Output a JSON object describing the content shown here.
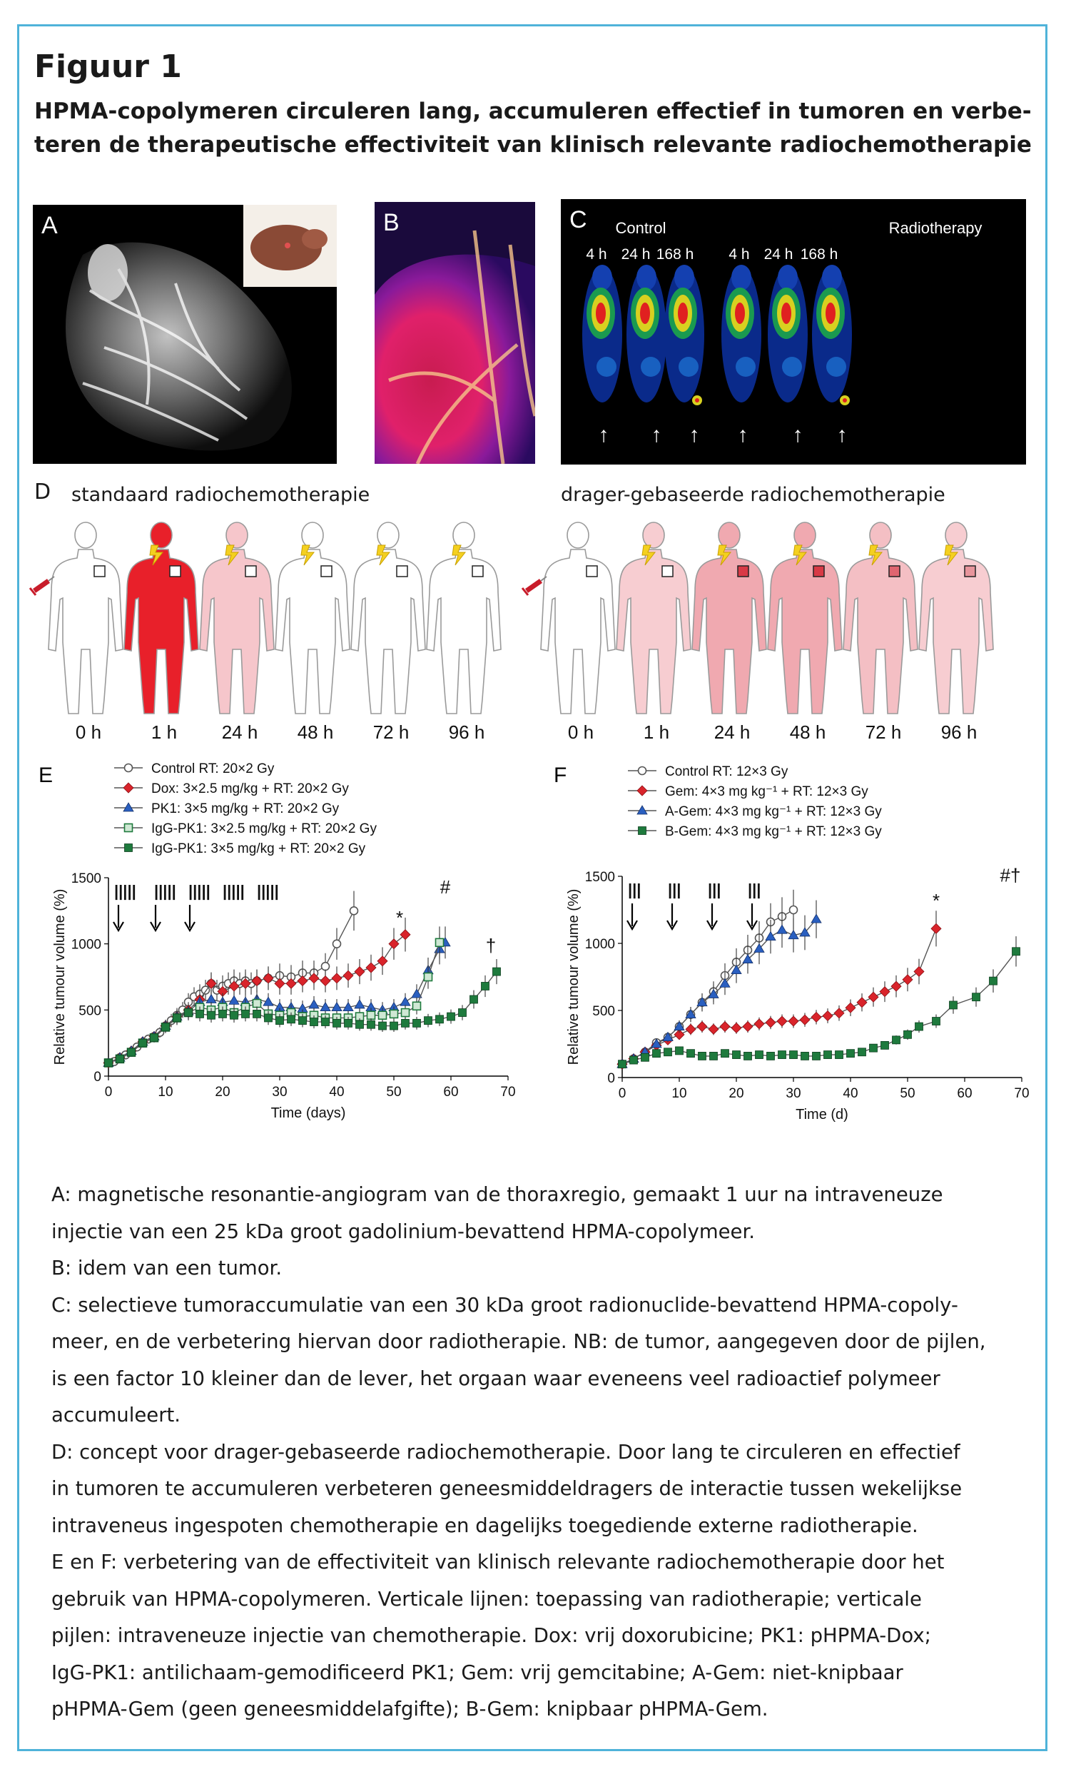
{
  "figure": {
    "title": "Figuur 1",
    "subtitle_lines": [
      "HPMA-copolymeren circuleren lang, accumuleren effectief in tumoren en verbe-",
      "teren de therapeutische effectiviteit van klinisch relevante radiochemotherapie"
    ]
  },
  "panels": {
    "a": {
      "letter": "A"
    },
    "b": {
      "letter": "B"
    },
    "c": {
      "letter": "C",
      "groups": [
        "Control",
        "Radiotherapy"
      ],
      "times": [
        "4 h",
        "24 h",
        "168 h",
        "4 h",
        "24 h",
        "168 h"
      ],
      "arrow": "↑"
    },
    "d": {
      "letter": "D",
      "left_label": "standaard radiochemotherapie",
      "right_label": "drager-gebaseerde radiochemotherapie",
      "left_times": [
        "0 h",
        "1 h",
        "24 h",
        "48 h",
        "72 h",
        "96 h"
      ],
      "right_times": [
        "0 h",
        "1 h",
        "24 h",
        "48 h",
        "72 h",
        "96 h"
      ],
      "left_body_colors": [
        "#ffffff",
        "#e8202a",
        "#f6c6cb",
        "#ffffff",
        "#ffffff",
        "#ffffff"
      ],
      "right_body_colors": [
        "#ffffff",
        "#f7cdd1",
        "#f0a9b0",
        "#f0a9b0",
        "#f4bfc4",
        "#f7cdd1"
      ],
      "right_tumor_colors": [
        "#ffffff",
        "#ffffff",
        "#d83a46",
        "#d83a46",
        "#e06570",
        "#e8959c"
      ],
      "left_icons": [
        "syringe-icon",
        "lightning-icon",
        "lightning-icon",
        "lightning-icon",
        "lightning-icon",
        "lightning-icon"
      ],
      "right_icons": [
        "syringe-icon",
        "lightning-icon",
        "lightning-icon",
        "lightning-icon",
        "lightning-icon",
        "lightning-icon"
      ]
    }
  },
  "chart_data": [
    {
      "type": "line",
      "panel": "E",
      "xlabel": "Time (days)",
      "ylabel": "Relative tumour volume (%)",
      "xlim": [
        0,
        70
      ],
      "ylim": [
        0,
        1500
      ],
      "xticks": [
        0,
        10,
        20,
        30,
        40,
        50,
        60,
        70
      ],
      "yticks": [
        0,
        500,
        1000,
        1500
      ],
      "annotations": [
        {
          "text": "*",
          "x": 51,
          "y": 1150
        },
        {
          "text": "#",
          "x": 59,
          "y": 1380
        },
        {
          "text": "†",
          "x": 67,
          "y": 940
        }
      ],
      "rt_marks": [
        "|||||",
        "|||||",
        "|||||",
        "|||||",
        "|||||"
      ],
      "rt_x": [
        1,
        8,
        14,
        20,
        26
      ],
      "chemo_x": [
        1,
        7.5,
        13.5
      ],
      "series": [
        {
          "name": "Control RT: 20×2 Gy",
          "marker": "open-circle",
          "color": "#888888",
          "x": [
            0,
            1,
            2,
            3,
            4,
            5,
            6,
            7,
            8,
            9,
            10,
            11,
            12,
            13,
            14,
            15,
            16,
            17,
            18,
            19,
            20,
            21,
            22,
            23,
            24,
            25,
            26,
            28,
            30,
            32,
            34,
            36,
            38,
            40,
            43
          ],
          "y": [
            100,
            110,
            140,
            160,
            180,
            220,
            250,
            280,
            300,
            330,
            380,
            420,
            460,
            500,
            560,
            600,
            620,
            650,
            700,
            650,
            680,
            700,
            720,
            700,
            720,
            700,
            720,
            740,
            760,
            750,
            780,
            780,
            830,
            1000,
            1250
          ]
        },
        {
          "name": "Dox: 3×2.5 mg/kg + RT: 20×2 Gy",
          "marker": "diamond",
          "color": "#d9242b",
          "x": [
            0,
            2,
            4,
            6,
            8,
            10,
            12,
            14,
            16,
            18,
            20,
            22,
            24,
            26,
            28,
            30,
            32,
            34,
            36,
            38,
            40,
            42,
            44,
            46,
            48,
            50,
            52
          ],
          "y": [
            100,
            140,
            190,
            260,
            300,
            380,
            450,
            500,
            580,
            700,
            640,
            680,
            700,
            720,
            740,
            700,
            700,
            720,
            740,
            720,
            740,
            760,
            790,
            820,
            870,
            1000,
            1070
          ]
        },
        {
          "name": "PK1: 3×5 mg/kg + RT: 20×2 Gy",
          "marker": "triangle",
          "color": "#2a5fc0",
          "x": [
            0,
            2,
            4,
            6,
            8,
            10,
            12,
            14,
            16,
            18,
            20,
            22,
            24,
            26,
            28,
            30,
            32,
            34,
            36,
            38,
            40,
            42,
            44,
            46,
            48,
            50,
            52,
            54,
            56,
            58,
            59
          ],
          "y": [
            100,
            140,
            190,
            260,
            300,
            380,
            450,
            490,
            560,
            580,
            560,
            570,
            560,
            580,
            560,
            520,
            520,
            510,
            540,
            520,
            520,
            520,
            540,
            520,
            500,
            520,
            560,
            620,
            800,
            960,
            1010
          ]
        },
        {
          "name": "IgG-PK1: 3×2.5 mg/kg + RT: 20×2 Gy",
          "marker": "square-dot",
          "color": "#1e7a3d",
          "x": [
            0,
            2,
            4,
            6,
            8,
            10,
            12,
            14,
            16,
            18,
            20,
            22,
            24,
            26,
            28,
            30,
            32,
            34,
            36,
            38,
            40,
            42,
            44,
            46,
            48,
            50,
            52,
            54,
            56,
            58
          ],
          "y": [
            100,
            130,
            180,
            250,
            290,
            370,
            440,
            480,
            520,
            500,
            520,
            480,
            520,
            550,
            470,
            460,
            480,
            450,
            460,
            440,
            440,
            440,
            450,
            460,
            460,
            470,
            480,
            530,
            750,
            1010
          ]
        },
        {
          "name": "IgG-PK1: 3×5 mg/kg + RT: 20×2 Gy",
          "marker": "square",
          "color": "#1e7a3d",
          "x": [
            0,
            2,
            4,
            6,
            8,
            10,
            12,
            14,
            16,
            18,
            20,
            22,
            24,
            26,
            28,
            30,
            32,
            34,
            36,
            38,
            40,
            42,
            44,
            46,
            48,
            50,
            52,
            54,
            56,
            58,
            60,
            62,
            64,
            66,
            68
          ],
          "y": [
            100,
            130,
            180,
            250,
            290,
            370,
            440,
            480,
            470,
            460,
            470,
            460,
            470,
            470,
            440,
            420,
            430,
            420,
            410,
            410,
            400,
            400,
            390,
            390,
            380,
            380,
            400,
            400,
            420,
            430,
            450,
            480,
            580,
            680,
            790
          ]
        }
      ]
    },
    {
      "type": "line",
      "panel": "F",
      "xlabel": "Time (d)",
      "ylabel": "Relative tumour volume (%)",
      "xlim": [
        0,
        70
      ],
      "ylim": [
        0,
        1500
      ],
      "xticks": [
        0,
        10,
        20,
        30,
        40,
        50,
        60,
        70
      ],
      "yticks": [
        0,
        500,
        1000,
        1500
      ],
      "annotations": [
        {
          "text": "*",
          "x": 55,
          "y": 1270
        },
        {
          "text": "#†",
          "x": 68,
          "y": 1460
        }
      ],
      "rt_marks": [
        "|||",
        "|||",
        "|||",
        "|||"
      ],
      "rt_x": [
        1,
        8,
        15,
        22
      ],
      "chemo_x": [
        1,
        8,
        15,
        22
      ],
      "series": [
        {
          "name": "Control RT: 12×3 Gy",
          "marker": "open-circle",
          "color": "#888888",
          "x": [
            0,
            2,
            4,
            6,
            8,
            10,
            12,
            14,
            16,
            18,
            20,
            22,
            24,
            26,
            28,
            30
          ],
          "y": [
            100,
            140,
            190,
            260,
            300,
            380,
            470,
            560,
            640,
            760,
            860,
            950,
            1040,
            1160,
            1200,
            1250
          ]
        },
        {
          "name": "Gem: 4×3 mg kg⁻¹ + RT: 12×3 Gy",
          "marker": "diamond",
          "color": "#d9242b",
          "x": [
            0,
            2,
            4,
            6,
            8,
            10,
            12,
            14,
            16,
            18,
            20,
            22,
            24,
            26,
            28,
            30,
            32,
            34,
            36,
            38,
            40,
            42,
            44,
            46,
            48,
            50,
            52,
            55
          ],
          "y": [
            100,
            140,
            190,
            240,
            280,
            320,
            360,
            380,
            360,
            380,
            370,
            380,
            400,
            410,
            420,
            420,
            430,
            450,
            460,
            480,
            520,
            560,
            600,
            640,
            680,
            730,
            790,
            1110
          ]
        },
        {
          "name": "A-Gem: 4×3 mg kg⁻¹ + RT: 12×3 Gy",
          "marker": "triangle",
          "color": "#2a5fc0",
          "x": [
            0,
            2,
            4,
            6,
            8,
            10,
            12,
            14,
            16,
            18,
            20,
            22,
            24,
            26,
            28,
            30,
            32,
            34
          ],
          "y": [
            100,
            140,
            190,
            250,
            300,
            380,
            470,
            560,
            620,
            700,
            800,
            880,
            960,
            1050,
            1100,
            1060,
            1080,
            1180
          ]
        },
        {
          "name": "B-Gem: 4×3 mg kg⁻¹ + RT: 12×3 Gy",
          "marker": "square",
          "color": "#1e7a3d",
          "x": [
            0,
            2,
            4,
            6,
            8,
            10,
            12,
            14,
            16,
            18,
            20,
            22,
            24,
            26,
            28,
            30,
            32,
            34,
            36,
            38,
            40,
            42,
            44,
            46,
            48,
            50,
            52,
            55,
            58,
            62,
            65,
            69
          ],
          "y": [
            100,
            130,
            150,
            180,
            190,
            200,
            180,
            160,
            160,
            180,
            170,
            160,
            170,
            160,
            170,
            170,
            160,
            160,
            170,
            170,
            180,
            190,
            220,
            240,
            280,
            320,
            380,
            420,
            540,
            600,
            720,
            940
          ]
        }
      ]
    }
  ],
  "caption": {
    "lines": [
      "A: magnetische resonantie-angiogram van de thoraxregio, gemaakt 1 uur na intraveneuze",
      "injectie van een 25 kDa groot gadolinium-bevattend HPMA-copolymeer.",
      "B: idem van een tumor.",
      "C: selectieve tumoraccumulatie van een 30 kDa groot radionuclide-bevattend HPMA-copoly-",
      "meer, en de verbetering hiervan door radiotherapie. NB: de tumor, aangegeven door de pijlen,",
      "is een factor 10 kleiner dan de lever, het orgaan waar eveneens veel radioactief polymeer",
      "accumuleert.",
      "D: concept voor drager-gebaseerde radiochemotherapie. Door lang te circuleren en effectief",
      "in tumoren te accumuleren verbeteren geneesmiddeldragers de interactie tussen wekelijkse",
      "intraveneus ingespoten chemotherapie en dagelijks toegediende externe radiotherapie.",
      "E en F: verbetering van de effectiviteit van klinisch relevante radiochemotherapie door het",
      "gebruik van HPMA-copolymeren. Verticale lijnen: toepassing van radiotherapie; verticale",
      "pijlen: intraveneuze injectie van chemotherapie. Dox: vrij doxorubicine; PK1: pHPMA-Dox;",
      "IgG-PK1: antilichaam-gemodificeerd PK1; Gem: vrij gemcitabine; A-Gem: niet-knipbaar",
      "pHPMA-Gem (geen geneesmiddelafgifte); B-Gem: knipbaar pHPMA-Gem."
    ]
  }
}
